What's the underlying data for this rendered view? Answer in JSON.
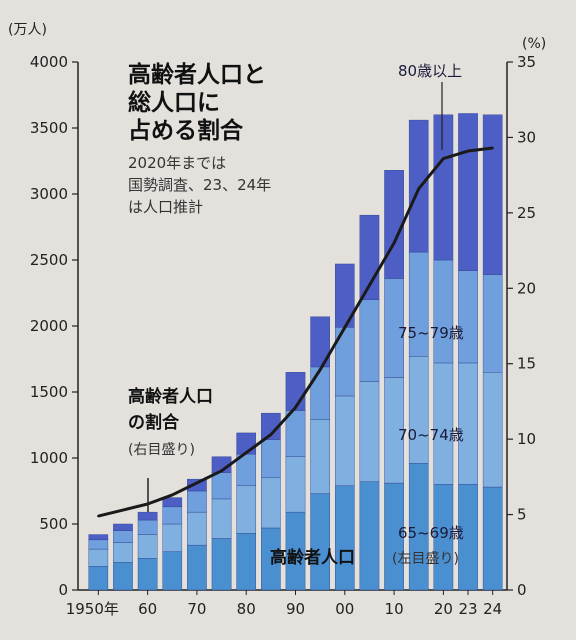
{
  "chart_data": {
    "type": "bar",
    "title": [
      "高齢者人口と",
      "総人口に",
      "占める割合"
    ],
    "note": [
      "2020年までは",
      "国勢調査、23、24年",
      "は人口推計"
    ],
    "left_unit": "(万人)",
    "right_unit": "(%)",
    "x_tick_labels": [
      "1950年",
      "60",
      "70",
      "80",
      "90",
      "00",
      "10",
      "20",
      "23",
      "24"
    ],
    "left_ticks": [
      "0",
      "500",
      "1000",
      "1500",
      "2000",
      "2500",
      "3000",
      "3500",
      "4000"
    ],
    "right_ticks": [
      "0",
      "5",
      "10",
      "15",
      "20",
      "25",
      "30",
      "35"
    ],
    "ylim_left": [
      0,
      4000
    ],
    "ylim_right": [
      0,
      35
    ],
    "categories": [
      "1950",
      "1955",
      "1960",
      "1965",
      "1970",
      "1975",
      "1980",
      "1985",
      "1990",
      "1995",
      "2000",
      "2005",
      "2010",
      "2015",
      "2020",
      "2023",
      "2024"
    ],
    "series": [
      {
        "name": "65~69歳",
        "values": [
          180,
          210,
          240,
          290,
          340,
          390,
          430,
          470,
          590,
          730,
          790,
          820,
          810,
          960,
          800,
          800,
          780
        ]
      },
      {
        "name": "70~74歳",
        "values": [
          130,
          150,
          180,
          210,
          250,
          300,
          360,
          380,
          420,
          560,
          680,
          760,
          800,
          810,
          920,
          920,
          870
        ]
      },
      {
        "name": "75~79歳",
        "values": [
          70,
          90,
          110,
          130,
          160,
          200,
          240,
          290,
          350,
          400,
          520,
          620,
          750,
          790,
          780,
          700,
          740
        ]
      },
      {
        "name": "80歳以上",
        "values": [
          40,
          50,
          60,
          70,
          90,
          120,
          160,
          200,
          290,
          380,
          480,
          640,
          820,
          1000,
          1100,
          1190,
          1210
        ]
      }
    ],
    "line": {
      "name": "高齢者人口の割合",
      "axis": "right",
      "values": [
        4.9,
        5.3,
        5.7,
        6.3,
        7.1,
        7.9,
        9.1,
        10.3,
        12.1,
        14.6,
        17.4,
        20.2,
        23.0,
        26.6,
        28.6,
        29.1,
        29.3
      ]
    },
    "annotations": {
      "segment_labels": [
        "80歳以上",
        "75~79歳",
        "70~74歳",
        "65~69歳"
      ],
      "bars_label": "高齢者人口",
      "bars_axis_note": "(左目盛り)",
      "line_label": [
        "高齢者人口",
        "の割合"
      ],
      "line_axis_note": "(右目盛り)"
    },
    "colors": {
      "65~69歳": "#4a8fd0",
      "70~74歳": "#7fb0e0",
      "75~79歳": "#6f9fdc",
      "80歳以上": "#4d5fc4",
      "line": "#1a1a1a"
    }
  }
}
